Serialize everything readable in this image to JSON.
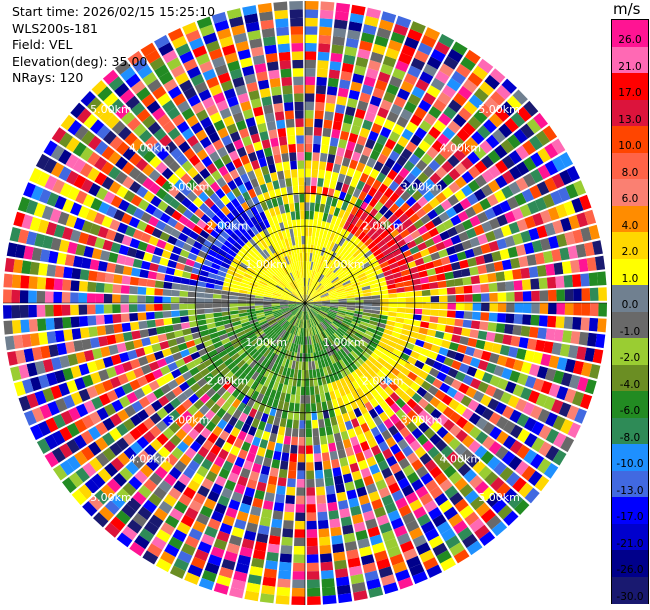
{
  "header": {
    "start_time": "Start time: 2026/02/15 15:25:10",
    "instrument": "WLS200s-181",
    "field": "Field: VEL",
    "elevation": "Elevation(deg): 35.00",
    "nrays": "NRays: 120"
  },
  "chart_data": {
    "type": "heatmap",
    "subtype": "polar-ppi",
    "field": "VEL",
    "unit": "m/s",
    "elevation_deg": 35.0,
    "n_rays": 120,
    "range_ring_labels": [
      "1.00km",
      "2.00km",
      "3.00km",
      "4.00km",
      "5.00km"
    ],
    "max_range_km": 5.5,
    "colorbar": {
      "unit": "m/s",
      "levels": [
        "26.0",
        "21.0",
        "17.0",
        "13.0",
        "10.0",
        "8.0",
        "6.0",
        "4.0",
        "2.0",
        "1.0",
        "0.0",
        "-1.0",
        "-2.0",
        "-4.0",
        "-6.0",
        "-8.0",
        "-10.0",
        "-13.0",
        "-17.0",
        "-21.0",
        "-26.0",
        "-30.0"
      ],
      "colors": [
        "#ff1493",
        "#ff69b4",
        "#ff0000",
        "#dc143c",
        "#ff4500",
        "#ff6347",
        "#fa8072",
        "#ff8c00",
        "#ffd700",
        "#ffff00",
        "#708090",
        "#696969",
        "#9acd32",
        "#6b8e23",
        "#228b22",
        "#2e8b57",
        "#1e90ff",
        "#4169e1",
        "#0000ff",
        "#0000cd",
        "#00008b",
        "#191970"
      ]
    }
  }
}
